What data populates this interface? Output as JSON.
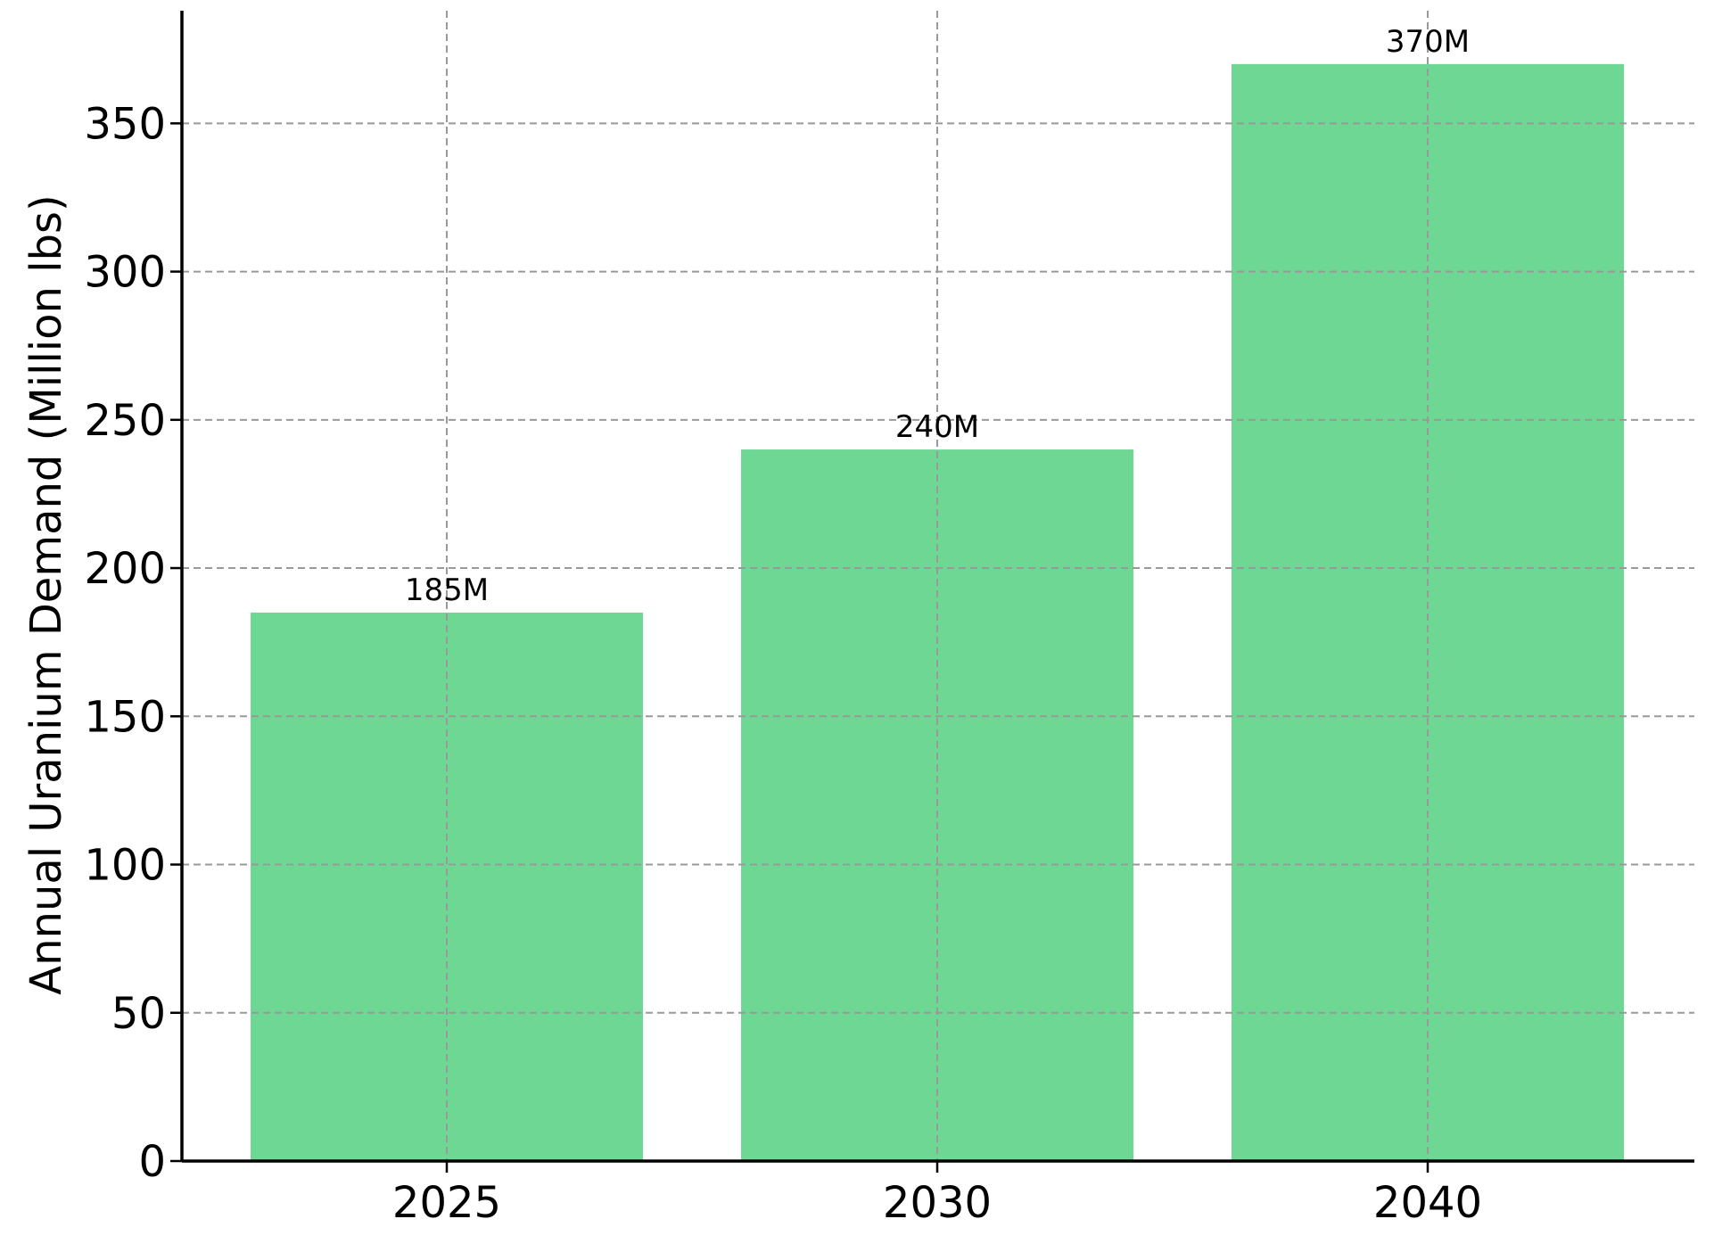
{
  "chart_data": {
    "type": "bar",
    "title": "",
    "xlabel": "",
    "ylabel": "Annual Uranium Demand (Million lbs)",
    "categories": [
      "2025",
      "2030",
      "2040"
    ],
    "values": [
      185,
      240,
      370
    ],
    "data_labels": [
      "185M",
      "240M",
      "370M"
    ],
    "ylim": [
      0,
      388
    ],
    "yticks": [
      0,
      50,
      100,
      150,
      200,
      250,
      300,
      350
    ],
    "grid": true,
    "legend": "none",
    "colors": {
      "bar": "#6fd794",
      "grid": "#999999",
      "axis": "#000000"
    }
  }
}
